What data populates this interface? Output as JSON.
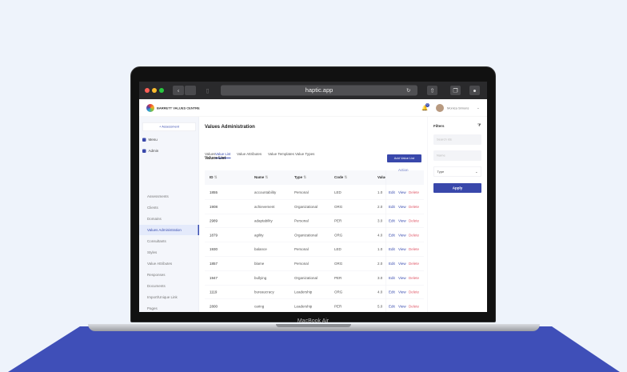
{
  "device": {
    "label": "MacBook Air"
  },
  "browser": {
    "url": "haptic.app"
  },
  "header": {
    "brand": "BARRETT VALUES CENTRE",
    "notification_count": "0",
    "user_name": "Monica Simons"
  },
  "sidebar": {
    "new_button": "+ Assessment",
    "sections": [
      "Menu",
      "Admin"
    ],
    "items": [
      "Assessments",
      "Clients",
      "Domains",
      "Values Administration",
      "Consultants",
      "Styles",
      "Value Attributes",
      "Responses",
      "Documents",
      "Import/Unique Link",
      "Pages"
    ],
    "active": "Values Administration"
  },
  "main": {
    "title": "Values Administration",
    "tabs": [
      "Values",
      "Value List",
      "Value Attributes",
      "Value Templates",
      "Value Types"
    ],
    "active_tab": "Value List",
    "list_title": "Values List",
    "add_button": "Add Value List",
    "columns": [
      "ID",
      "Name",
      "Type",
      "Code",
      "Value",
      "Action"
    ],
    "rows": [
      [
        "1855",
        "accountability",
        "Personal",
        "LED",
        "1.0"
      ],
      [
        "1908",
        "achievement",
        "Organizational",
        "ORG",
        "2.0"
      ],
      [
        "2989",
        "adaptability",
        "Personal",
        "PER",
        "3.0"
      ],
      [
        "1879",
        "agility",
        "Organizational",
        "ORG",
        "4.0"
      ],
      [
        "1930",
        "balance",
        "Personal",
        "LED",
        "1.0"
      ],
      [
        "1857",
        "blame",
        "Personal",
        "ORG",
        "2.0"
      ],
      [
        "1947",
        "bullying",
        "Organizational",
        "PER",
        "3.0"
      ],
      [
        "1119",
        "bureaucracy",
        "Leadership",
        "ORG",
        "4.0"
      ],
      [
        "2800",
        "caring",
        "Leadership",
        "PER",
        "5.0"
      ]
    ],
    "actions": [
      "Edit",
      "View",
      "Delete"
    ]
  },
  "filters": {
    "title": "Filters",
    "search_placeholder": "Search ids",
    "name_placeholder": "Name",
    "type_label": "Type",
    "apply": "Apply"
  },
  "colors": {
    "accent": "#3a4db0",
    "delete": "#e05a6a",
    "floor": "#3f4fb8"
  }
}
